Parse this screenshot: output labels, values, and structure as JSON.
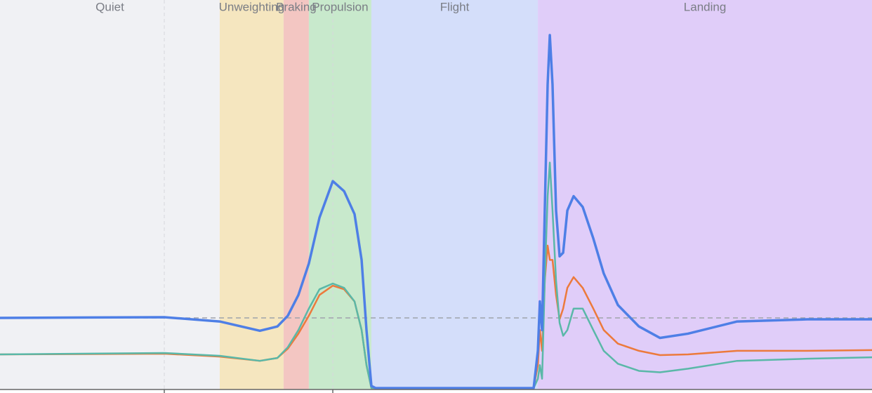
{
  "chart_data": {
    "type": "line",
    "xlim": [
      0.025,
      5.2
    ],
    "ylim": [
      0,
      5.44
    ],
    "xticks": [
      1,
      2
    ],
    "show_tick_labels": false,
    "grid": true,
    "reference_line": 1,
    "phases": [
      {
        "label": "Quiet",
        "start": 0.025,
        "end": 1.329,
        "color": "#f0f1f4"
      },
      {
        "label": "Unweighting",
        "start": 1.329,
        "end": 1.708,
        "color": "#f5e6bf"
      },
      {
        "label": "Braking",
        "start": 1.708,
        "end": 1.858,
        "color": "#f3c6c2"
      },
      {
        "label": "Propulsion",
        "start": 1.858,
        "end": 2.229,
        "color": "#c8e9cc"
      },
      {
        "label": "Flight",
        "start": 2.229,
        "end": 3.217,
        "color": "#d4defa"
      },
      {
        "label": "Landing",
        "start": 3.217,
        "end": 5.2,
        "color": "#e0cdf9"
      }
    ],
    "x": [
      0.025,
      1,
      1.329,
      1.567,
      1.671,
      1.733,
      1.796,
      1.858,
      1.921,
      2,
      2.067,
      2.129,
      2.171,
      2.2,
      2.229,
      2.254,
      2.525,
      2.942,
      3.192,
      3.217,
      3.229,
      3.242,
      3.258,
      3.275,
      3.288,
      3.304,
      3.325,
      3.346,
      3.367,
      3.392,
      3.429,
      3.483,
      3.546,
      3.608,
      3.692,
      3.817,
      3.942,
      4.108,
      4.4,
      4.817,
      5.2
    ],
    "series": [
      {
        "color": "#ec7a3c",
        "width": 2.5,
        "values": [
          0.49,
          0.5,
          0.46,
          0.4,
          0.44,
          0.57,
          0.78,
          1.03,
          1.32,
          1.45,
          1.4,
          1.23,
          0.83,
          0.34,
          0.02,
          0.02,
          0.02,
          0.02,
          0.02,
          0.34,
          0.83,
          0.54,
          1.52,
          2.01,
          1.81,
          1.81,
          1.32,
          0.98,
          1.13,
          1.42,
          1.57,
          1.42,
          1.13,
          0.83,
          0.64,
          0.54,
          0.48,
          0.49,
          0.54,
          0.54,
          0.55
        ]
      },
      {
        "color": "#5ab8a8",
        "width": 2.5,
        "values": [
          0.49,
          0.51,
          0.47,
          0.4,
          0.44,
          0.59,
          0.83,
          1.13,
          1.4,
          1.48,
          1.42,
          1.23,
          0.83,
          0.34,
          0.02,
          0.02,
          0.02,
          0.02,
          0.02,
          0.15,
          0.34,
          0.15,
          1.52,
          2.7,
          3.17,
          2.5,
          1.52,
          0.93,
          0.75,
          0.83,
          1.13,
          1.13,
          0.83,
          0.54,
          0.36,
          0.26,
          0.24,
          0.29,
          0.4,
          0.43,
          0.45
        ]
      },
      {
        "color": "#4e7fe6",
        "width": 3.5,
        "values": [
          1.0,
          1.01,
          0.95,
          0.82,
          0.88,
          1.03,
          1.32,
          1.76,
          2.4,
          2.91,
          2.77,
          2.45,
          1.81,
          0.83,
          0.05,
          0.02,
          0.02,
          0.02,
          0.02,
          0.54,
          1.23,
          0.83,
          2.5,
          4.26,
          4.95,
          4.26,
          2.5,
          1.86,
          1.91,
          2.5,
          2.7,
          2.55,
          2.11,
          1.62,
          1.18,
          0.88,
          0.72,
          0.78,
          0.95,
          0.98,
          0.98
        ]
      }
    ]
  }
}
